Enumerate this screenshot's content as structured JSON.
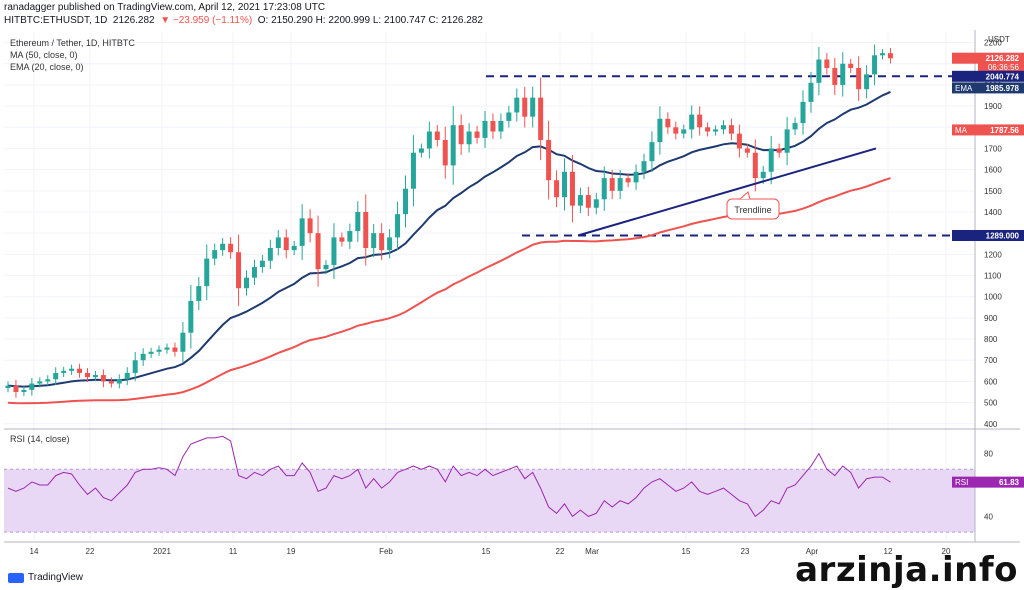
{
  "header": {
    "line1": "ranadagger published on TradingView.com, April 12, 2021 17:23:08 UTC",
    "symbol": "HITBTC:ETHUSDT, 1D",
    "ohlc_open": "2126.282",
    "ohlc_change": "▼ −23.959 (−1.11%)",
    "ohlc_rest": "O: 2150.290  H: 2200.999  L: 2100.747  C: 2126.282"
  },
  "legend": {
    "title": "Ethereum / Tether, 1D, HITBTC",
    "ma": "MA (50, close, 0)",
    "ema": "EMA (20, close, 0)",
    "rsi": "RSI (14, close)"
  },
  "footer": {
    "brand": "TradingView"
  },
  "watermark": "arzinja.info",
  "colors": {
    "up": "#26a69a",
    "down": "#ef5350",
    "ema": "#1e3a6e",
    "ma": "#ef5350",
    "rsi": "#9c27b0",
    "rsi_band": "#e9d8f5",
    "level": "#1a237e"
  },
  "chart_data": [
    {
      "type": "candlestick",
      "title": "Ethereum / Tether, 1D, HITBTC",
      "currency": "USDT",
      "x_tick_labels": [
        "14",
        "22",
        "2021",
        "11",
        "19",
        "Feb",
        "15",
        "22",
        "Mar",
        "15",
        "23",
        "Apr",
        "12",
        "20"
      ],
      "y_tick_labels": [
        400,
        500,
        600,
        700,
        800,
        900,
        1000,
        1100,
        1200,
        1300,
        1400,
        1500,
        1600,
        1700,
        1800,
        1900,
        2000,
        2100,
        2200
      ],
      "ylim": [
        380,
        2250
      ],
      "close": [
        580,
        550,
        560,
        590,
        600,
        610,
        640,
        650,
        660,
        640,
        620,
        630,
        600,
        590,
        610,
        640,
        700,
        730,
        740,
        750,
        760,
        740,
        830,
        980,
        1050,
        1180,
        1220,
        1250,
        1210,
        1040,
        1090,
        1140,
        1170,
        1230,
        1280,
        1220,
        1240,
        1370,
        1300,
        1130,
        1150,
        1280,
        1260,
        1310,
        1400,
        1230,
        1300,
        1220,
        1280,
        1390,
        1510,
        1680,
        1700,
        1780,
        1740,
        1620,
        1810,
        1720,
        1780,
        1750,
        1830,
        1780,
        1830,
        1870,
        1940,
        1850,
        1940,
        1740,
        1550,
        1470,
        1590,
        1430,
        1480,
        1420,
        1460,
        1560,
        1500,
        1560,
        1540,
        1590,
        1640,
        1730,
        1840,
        1800,
        1770,
        1790,
        1860,
        1800,
        1780,
        1790,
        1810,
        1770,
        1700,
        1680,
        1560,
        1590,
        1700,
        1680,
        1790,
        1820,
        1920,
        2010,
        2120,
        2080,
        2000,
        2100,
        2080,
        1980,
        2050,
        2140,
        2150,
        2126
      ],
      "ema20_last": 1985.978,
      "ma50_last": 1787.56,
      "last_price": 2126.282,
      "countdown": "06:36:56",
      "annotations": {
        "resistance": 2040.774,
        "support": 1289.0,
        "trendline_label": "Trendline"
      },
      "labels": {
        "ema": "EMA",
        "ma": "MA"
      }
    },
    {
      "type": "line",
      "title": "RSI (14, close)",
      "ylim": [
        25,
        95
      ],
      "y_tick_labels": [
        40,
        80
      ],
      "band": [
        30,
        70
      ],
      "values": [
        58,
        56,
        58,
        62,
        60,
        60,
        66,
        68,
        67,
        60,
        54,
        58,
        52,
        50,
        55,
        60,
        68,
        70,
        70,
        71,
        70,
        66,
        78,
        86,
        88,
        90,
        90,
        91,
        88,
        66,
        64,
        68,
        66,
        70,
        72,
        66,
        66,
        74,
        68,
        56,
        58,
        66,
        64,
        66,
        70,
        58,
        64,
        58,
        62,
        68,
        70,
        72,
        70,
        72,
        70,
        62,
        72,
        66,
        68,
        66,
        70,
        66,
        68,
        70,
        72,
        64,
        68,
        58,
        46,
        42,
        48,
        40,
        44,
        40,
        42,
        50,
        46,
        50,
        48,
        52,
        58,
        62,
        64,
        60,
        56,
        58,
        62,
        56,
        54,
        56,
        58,
        54,
        50,
        48,
        40,
        44,
        50,
        48,
        58,
        60,
        66,
        72,
        80,
        70,
        66,
        72,
        68,
        58,
        64,
        65,
        65,
        61.83
      ],
      "last": 61.83
    }
  ]
}
